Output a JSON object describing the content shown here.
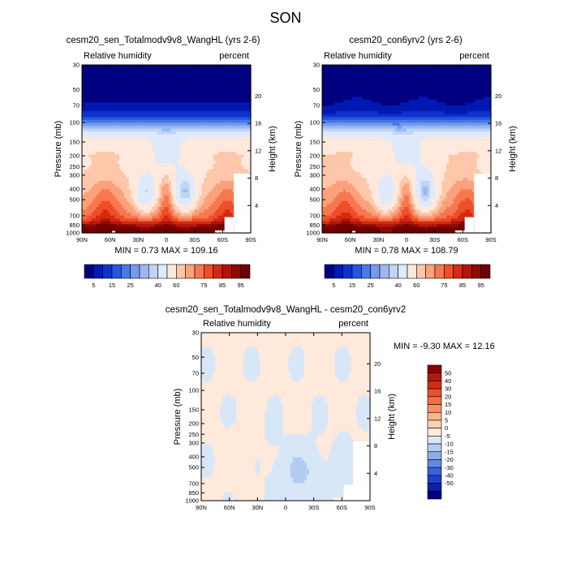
{
  "figure_title": "SON",
  "chart_data": [
    {
      "type": "heatmap",
      "title": "cesm20_sen_Totalmodv9v8_WangHL (yrs 2-6)",
      "left_label": "Relative humidity",
      "right_label": "percent",
      "ylabel": "Pressure (mb)",
      "y2label": "Height (km)",
      "x_ticks": [
        "90N",
        "60N",
        "30N",
        "0",
        "30S",
        "60S",
        "90S"
      ],
      "y_ticks": [
        30,
        50,
        70,
        100,
        150,
        200,
        250,
        300,
        400,
        500,
        700,
        850,
        1000
      ],
      "y2_ticks": [
        20,
        16,
        12,
        8,
        4
      ],
      "ylim": [
        30,
        1000
      ],
      "y_scale": "log",
      "min_text": "MIN =   0.73   MAX = 109.16",
      "colorbar": {
        "orientation": "horizontal",
        "levels": [
          5,
          10,
          15,
          20,
          25,
          30,
          35,
          40,
          50,
          60,
          65,
          70,
          75,
          80,
          85,
          90,
          95
        ],
        "labels": [
          "5",
          "15",
          "25",
          "40",
          "60",
          "75",
          "85",
          "95"
        ],
        "colors": [
          "#000080",
          "#0019b2",
          "#0d33cc",
          "#2655e0",
          "#4a78e8",
          "#7599ec",
          "#9cb8f0",
          "#c0d4f5",
          "#deeafb",
          "#ffe9dc",
          "#fec7aa",
          "#fba17c",
          "#f77850",
          "#ee4e2b",
          "#d52a12",
          "#b3150a",
          "#8d0a05",
          "#700000"
        ]
      }
    },
    {
      "type": "heatmap",
      "title": "cesm20_con6yrv2 (yrs 2-6)",
      "left_label": "Relative humidity",
      "right_label": "percent",
      "ylabel": "Pressure (mb)",
      "y2label": "Height (km)",
      "x_ticks": [
        "90N",
        "60N",
        "30N",
        "0",
        "30S",
        "60S",
        "90S"
      ],
      "y_ticks": [
        30,
        50,
        70,
        100,
        150,
        200,
        250,
        300,
        400,
        500,
        700,
        850,
        1000
      ],
      "y2_ticks": [
        20,
        16,
        12,
        8,
        4
      ],
      "ylim": [
        30,
        1000
      ],
      "y_scale": "log",
      "min_text": "MIN =   0.78   MAX = 108.79",
      "colorbar": {
        "orientation": "horizontal",
        "levels": [
          5,
          10,
          15,
          20,
          25,
          30,
          35,
          40,
          50,
          60,
          65,
          70,
          75,
          80,
          85,
          90,
          95
        ],
        "labels": [
          "5",
          "15",
          "25",
          "40",
          "60",
          "75",
          "85",
          "95"
        ],
        "colors": [
          "#000080",
          "#0019b2",
          "#0d33cc",
          "#2655e0",
          "#4a78e8",
          "#7599ec",
          "#9cb8f0",
          "#c0d4f5",
          "#deeafb",
          "#ffe9dc",
          "#fec7aa",
          "#fba17c",
          "#f77850",
          "#ee4e2b",
          "#d52a12",
          "#b3150a",
          "#8d0a05",
          "#700000"
        ]
      }
    },
    {
      "type": "heatmap",
      "title": "cesm20_sen_Totalmodv9v8_WangHL - cesm20_con6yrv2",
      "left_label": "Relative humidity",
      "right_label": "percent",
      "ylabel": "Pressure (mb)",
      "y2label": "Height (km)",
      "x_ticks": [
        "90N",
        "60N",
        "30N",
        "0",
        "30S",
        "60S",
        "90S"
      ],
      "y_ticks": [
        30,
        50,
        70,
        100,
        150,
        200,
        250,
        300,
        400,
        500,
        700,
        850,
        1000
      ],
      "y2_ticks": [
        20,
        16,
        12,
        8,
        4
      ],
      "ylim": [
        30,
        1000
      ],
      "y_scale": "log",
      "min_text": "MIN =  -9.30   MAX =  12.16",
      "colorbar": {
        "orientation": "vertical",
        "labels": [
          "50",
          "40",
          "30",
          "20",
          "15",
          "10",
          "5",
          "0",
          "-5",
          "-10",
          "-15",
          "-20",
          "-30",
          "-40",
          "-50"
        ],
        "colors": [
          "#8b0000",
          "#b01a0b",
          "#d12d14",
          "#ee4e2b",
          "#f76c44",
          "#fb9066",
          "#fdb38d",
          "#fdd2b6",
          "#ffe9da",
          "#d8e7f8",
          "#b3ccf2",
          "#8badec",
          "#6188e6",
          "#3b62dc",
          "#1f3ecc",
          "#0d20a6",
          "#000080"
        ]
      }
    }
  ]
}
